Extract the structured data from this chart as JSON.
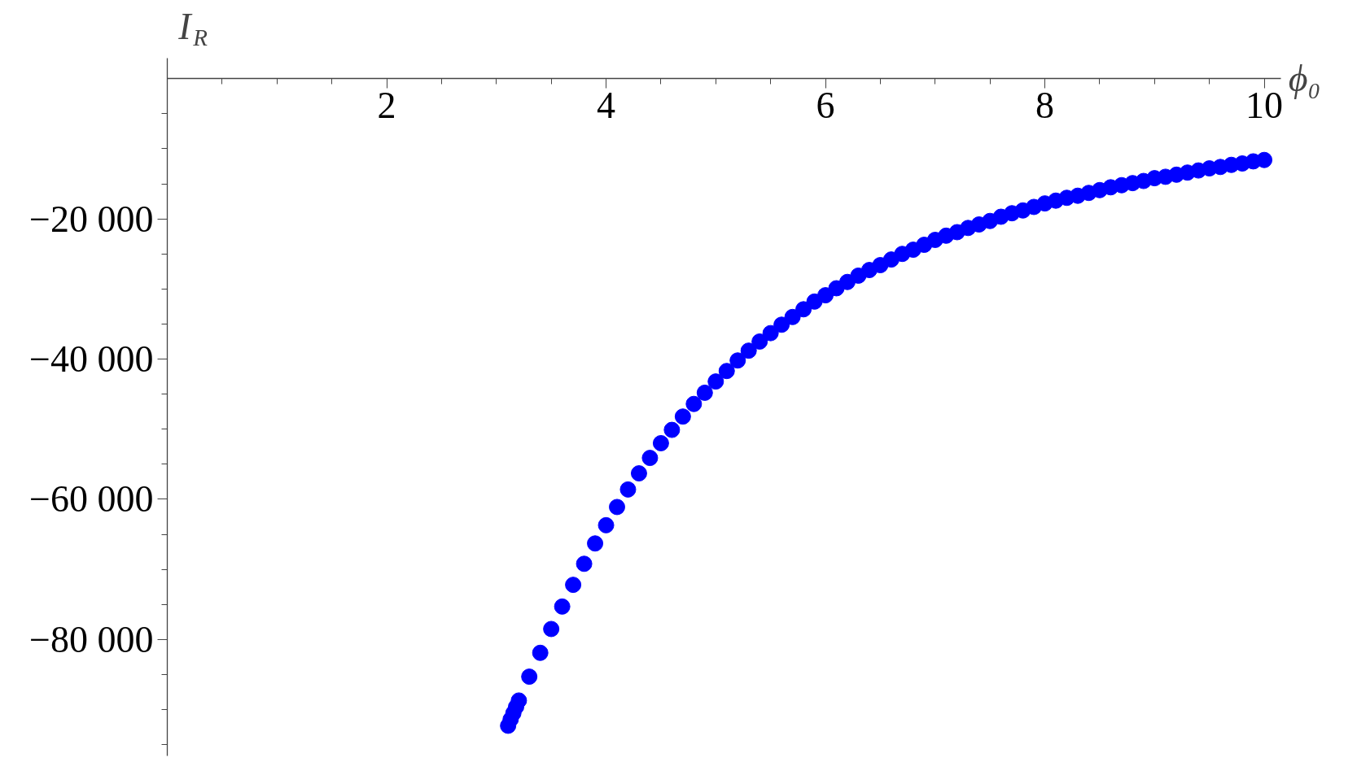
{
  "chart_data": {
    "type": "scatter",
    "xlabel": "ϕ₀",
    "ylabel": "I$_{R}$",
    "x": [
      3.107,
      3.13,
      3.155,
      3.18,
      3.205,
      3.3,
      3.4,
      3.5,
      3.6,
      3.7,
      3.8,
      3.9,
      4.0,
      4.1,
      4.2,
      4.3,
      4.4,
      4.5,
      4.6,
      4.7,
      4.8,
      4.9,
      5.0,
      5.1,
      5.2,
      5.3,
      5.4,
      5.5,
      5.6,
      5.7,
      5.8,
      5.9,
      6.0,
      6.1,
      6.2,
      6.3,
      6.4,
      6.5,
      6.6,
      6.7,
      6.8,
      6.9,
      7.0,
      7.1,
      7.2,
      7.3,
      7.4,
      7.5,
      7.6,
      7.7,
      7.8,
      7.9,
      8.0,
      8.1,
      8.2,
      8.3,
      8.4,
      8.5,
      8.6,
      8.7,
      8.8,
      8.9,
      9.0,
      9.1,
      9.2,
      9.3,
      9.4,
      9.5,
      9.6,
      9.7,
      9.8,
      9.9,
      10.0
    ],
    "series": [
      {
        "color": "#0000ff",
        "values": [
          -92300,
          -91400,
          -90500,
          -89600,
          -88700,
          -85300,
          -81900,
          -78500,
          -75300,
          -72200,
          -69200,
          -66300,
          -63700,
          -61100,
          -58600,
          -56300,
          -54100,
          -52000,
          -50100,
          -48200,
          -46400,
          -44800,
          -43200,
          -41700,
          -40200,
          -38800,
          -37500,
          -36300,
          -35100,
          -34000,
          -32900,
          -31800,
          -30900,
          -29900,
          -29000,
          -28100,
          -27300,
          -26600,
          -25800,
          -25000,
          -24400,
          -23700,
          -23000,
          -22400,
          -21900,
          -21300,
          -20800,
          -20300,
          -19700,
          -19200,
          -18800,
          -18300,
          -17800,
          -17400,
          -17000,
          -16700,
          -16300,
          -15900,
          -15500,
          -15200,
          -14900,
          -14600,
          -14200,
          -14000,
          -13700,
          -13400,
          -13100,
          -12800,
          -12600,
          -12300,
          -12100,
          -11800,
          -11600
        ]
      }
    ],
    "marker": "circle",
    "grid": false,
    "xlim": [
      0,
      10.15
    ],
    "ylim": [
      -96600,
      2960
    ],
    "xticks": [
      {
        "value": 0.5,
        "label": null
      },
      {
        "value": 1,
        "label": null
      },
      {
        "value": 1.5,
        "label": null
      },
      2,
      {
        "value": 2.5,
        "label": null
      },
      {
        "value": 3,
        "label": null
      },
      {
        "value": 3.5,
        "label": null
      },
      4,
      {
        "value": 4.5,
        "label": null
      },
      {
        "value": 5,
        "label": null
      },
      {
        "value": 5.5,
        "label": null
      },
      6,
      {
        "value": 6.5,
        "label": null
      },
      {
        "value": 7,
        "label": null
      },
      {
        "value": 7.5,
        "label": null
      },
      8,
      {
        "value": 8.5,
        "label": null
      },
      {
        "value": 9,
        "label": null
      },
      {
        "value": 9.5,
        "label": null
      },
      10
    ],
    "yticks": [
      {
        "value": -5000,
        "label": null
      },
      {
        "value": -10000,
        "label": null
      },
      {
        "value": -15000,
        "label": null
      },
      {
        "value": -20000,
        "label": "−20 000"
      },
      {
        "value": -25000,
        "label": null
      },
      {
        "value": -30000,
        "label": null
      },
      {
        "value": -35000,
        "label": null
      },
      {
        "value": -40000,
        "label": "−40 000"
      },
      {
        "value": -45000,
        "label": null
      },
      {
        "value": -50000,
        "label": null
      },
      {
        "value": -55000,
        "label": null
      },
      {
        "value": -60000,
        "label": "−60 000"
      },
      {
        "value": -65000,
        "label": null
      },
      {
        "value": -70000,
        "label": null
      },
      {
        "value": -75000,
        "label": null
      },
      {
        "value": -80000,
        "label": "−80 000"
      },
      {
        "value": -85000,
        "label": null
      },
      {
        "value": -90000,
        "label": null
      },
      {
        "value": -95000,
        "label": null
      }
    ]
  }
}
